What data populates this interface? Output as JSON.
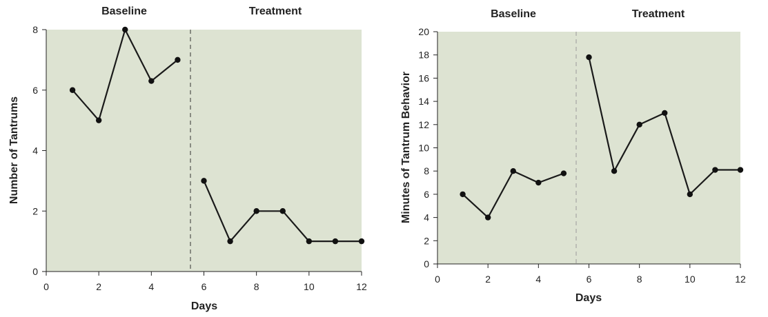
{
  "colors": {
    "plot_bg": "#dde3d2",
    "line": "#1a1a1a",
    "marker": "#111111",
    "axis": "#222222",
    "phase_line_left": "#333333",
    "phase_line_right": "#9a9a9a"
  },
  "chart_data": [
    {
      "type": "line",
      "title": "",
      "xlabel": "Days",
      "ylabel": "Number of Tantrums",
      "xlim": [
        0,
        12
      ],
      "ylim": [
        0,
        8
      ],
      "xticks": [
        0,
        2,
        4,
        6,
        8,
        10,
        12
      ],
      "yticks": [
        0,
        2,
        4,
        6,
        8
      ],
      "phase_change_x": 5.5,
      "phase_labels": [
        "Baseline",
        "Treatment"
      ],
      "grid": false,
      "series": [
        {
          "phase": "Baseline",
          "x": [
            1,
            2,
            3,
            4,
            5
          ],
          "y": [
            6,
            5,
            8,
            6.3,
            7
          ]
        },
        {
          "phase": "Treatment",
          "x": [
            6,
            7,
            8,
            9,
            10,
            11,
            12
          ],
          "y": [
            3,
            1,
            2,
            2,
            1,
            1,
            1
          ]
        }
      ]
    },
    {
      "type": "line",
      "title": "",
      "xlabel": "Days",
      "ylabel": "Minutes of Tantrum Behavior",
      "xlim": [
        0,
        12
      ],
      "ylim": [
        0,
        20
      ],
      "xticks": [
        0,
        2,
        4,
        6,
        8,
        10,
        12
      ],
      "yticks": [
        0,
        2,
        4,
        6,
        8,
        10,
        12,
        14,
        16,
        18,
        20
      ],
      "phase_change_x": 5.5,
      "phase_labels": [
        "Baseline",
        "Treatment"
      ],
      "grid": false,
      "series": [
        {
          "phase": "Baseline",
          "x": [
            1,
            2,
            3,
            4,
            5
          ],
          "y": [
            6,
            4,
            8,
            7,
            7.8
          ]
        },
        {
          "phase": "Treatment",
          "x": [
            6,
            7,
            8,
            9,
            10,
            11,
            12
          ],
          "y": [
            17.8,
            8,
            12,
            13,
            6,
            8.1,
            8.1
          ]
        }
      ]
    }
  ]
}
